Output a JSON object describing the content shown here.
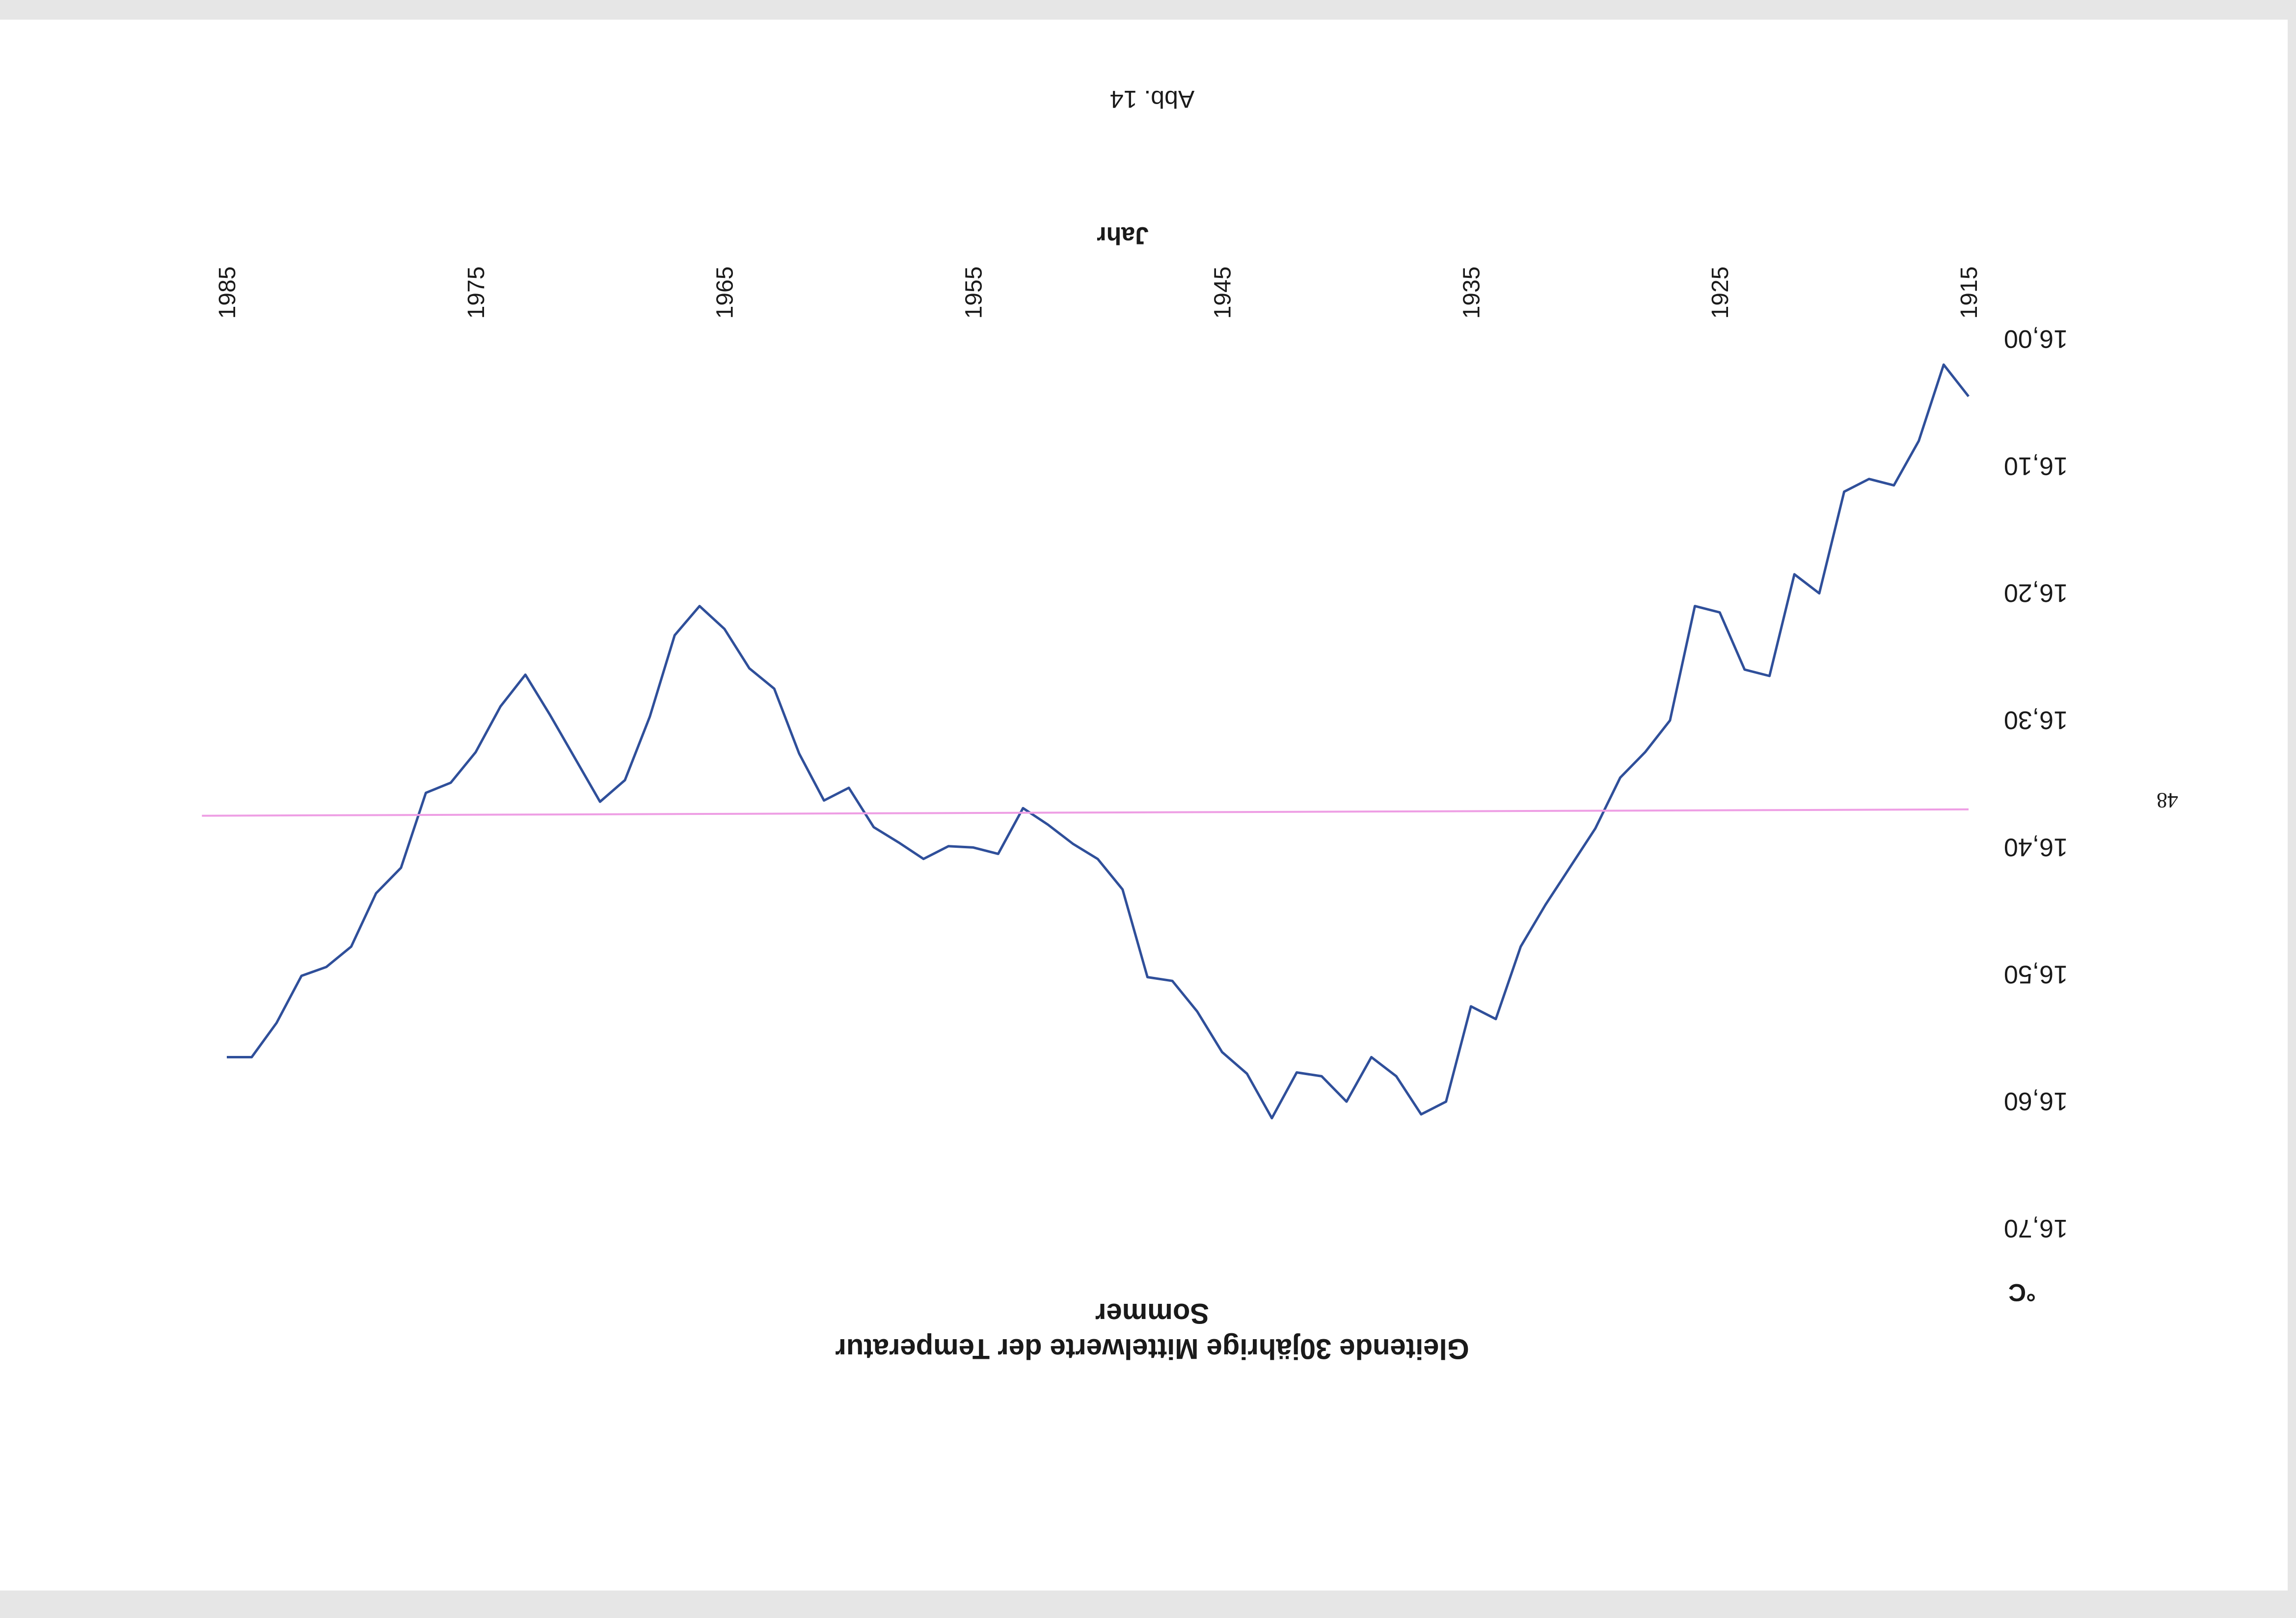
{
  "page": {
    "figure_label": "Abb. 14",
    "page_number": "48",
    "background": "#ffffff",
    "margin_color": "#e6e6e6"
  },
  "chart_data": {
    "type": "line",
    "title": "Gleitende 30jährige Mittelwerte der Temperatur",
    "subtitle": "Sommer",
    "xlabel": "Jahr",
    "ylabel": "°C",
    "x_ticks": [
      "1985",
      "1975",
      "1965",
      "1955",
      "1945",
      "1935",
      "1925",
      "1915"
    ],
    "x_tick_values": [
      1985,
      1975,
      1965,
      1955,
      1945,
      1935,
      1925,
      1915
    ],
    "y_ticks": [
      "16,00",
      "16,10",
      "16,20",
      "16,30",
      "16,40",
      "16,50",
      "16,60",
      "16,70"
    ],
    "y_tick_values": [
      16.0,
      16.1,
      16.2,
      16.3,
      16.4,
      16.5,
      16.6,
      16.7
    ],
    "xlim": [
      1915,
      1985
    ],
    "ylim": [
      16.0,
      16.7
    ],
    "y_inverted": true,
    "orientation": "rotated 180 degrees",
    "grid": false,
    "series": [
      {
        "color": "#2f4f9a",
        "x": [
          1915,
          1916,
          1917,
          1918,
          1919,
          1920,
          1921,
          1922,
          1923,
          1924,
          1925,
          1926,
          1927,
          1928,
          1929,
          1930,
          1931,
          1932,
          1933,
          1934,
          1935,
          1936,
          1937,
          1938,
          1939,
          1940,
          1941,
          1942,
          1943,
          1944,
          1945,
          1946,
          1947,
          1948,
          1949,
          1950,
          1951,
          1952,
          1953,
          1954,
          1955,
          1956,
          1957,
          1958,
          1959,
          1960,
          1961,
          1962,
          1963,
          1964,
          1965,
          1966,
          1967,
          1968,
          1969,
          1970,
          1971,
          1972,
          1973,
          1974,
          1975,
          1976,
          1977,
          1978,
          1979,
          1980,
          1981,
          1982,
          1983,
          1984,
          1985
        ],
        "values": [
          16.045,
          16.02,
          16.08,
          16.115,
          16.11,
          16.12,
          16.2,
          16.185,
          16.265,
          16.26,
          16.215,
          16.21,
          16.3,
          16.325,
          16.345,
          16.385,
          16.415,
          16.445,
          16.478,
          16.535,
          16.525,
          16.6,
          16.61,
          16.58,
          16.565,
          16.6,
          16.58,
          16.577,
          16.613,
          16.578,
          16.561,
          16.529,
          16.505,
          16.502,
          16.433,
          16.409,
          16.397,
          16.382,
          16.369,
          16.405,
          16.4,
          16.399,
          16.409,
          16.396,
          16.384,
          16.353,
          16.363,
          16.326,
          16.275,
          16.259,
          16.228,
          16.21,
          16.233,
          16.297,
          16.347,
          16.364,
          16.33,
          16.296,
          16.264,
          16.289,
          16.325,
          16.349,
          16.357,
          16.416,
          16.436,
          16.478,
          16.494,
          16.501,
          16.538,
          16.565,
          16.565
        ]
      },
      {
        "color": "#ee9ee4",
        "x": [
          1915,
          1986
        ],
        "values": [
          16.37,
          16.375
        ]
      }
    ]
  }
}
